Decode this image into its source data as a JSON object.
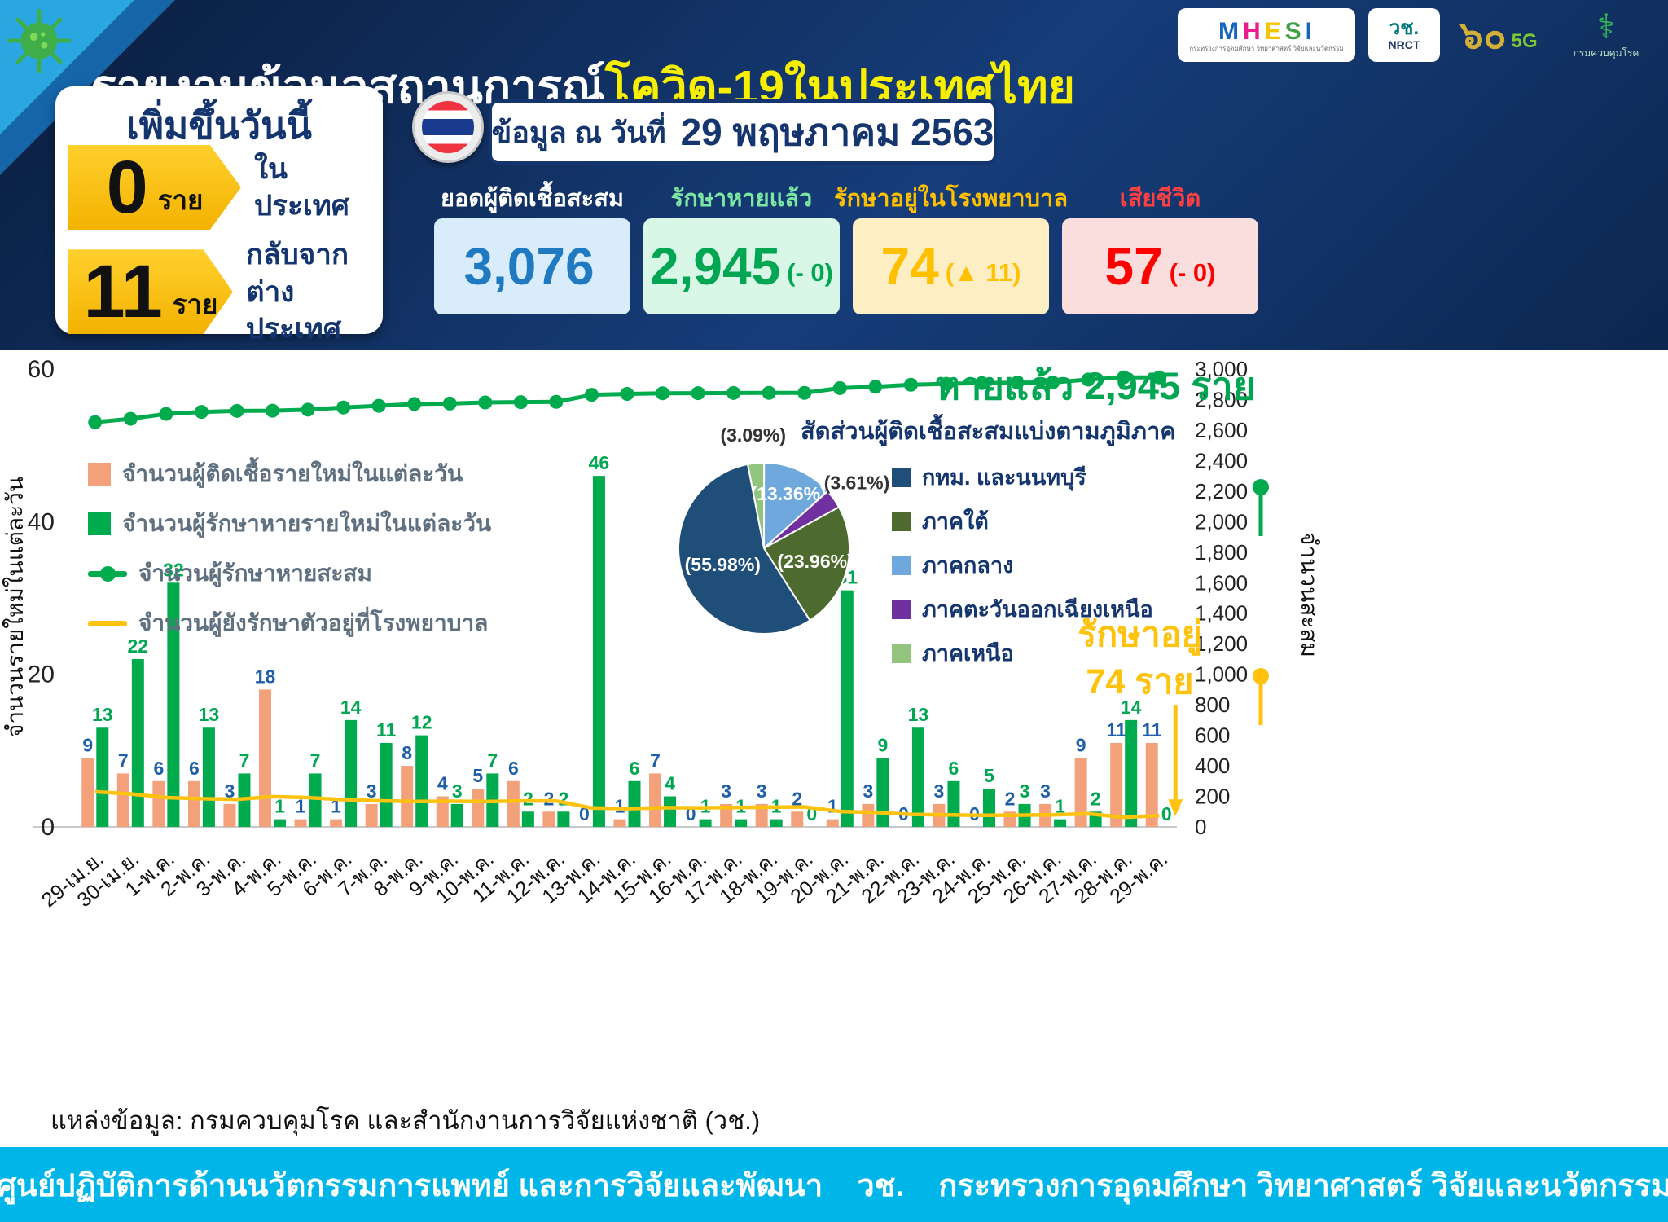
{
  "header": {
    "title_white": "รายงานข้อมูลสถานการณ์",
    "title_yellow": "โควิด-19ในประเทศไทย",
    "date_prefix": "ข้อมูล ณ วันที่",
    "date_value": "29 พฤษภาคม 2563",
    "logos": {
      "mhesi_letters": [
        "M",
        "H",
        "E",
        "S",
        "I"
      ],
      "mhesi_sub": "กระทรวงการอุดมศึกษา วิทยาศาสตร์ วิจัยและนวัตกรรม",
      "nrct_th": "วช.",
      "nrct_en": "NRCT",
      "sixty": "๖๐",
      "five_g": "5G",
      "ddc_symbol": "⚕",
      "ddc": "กรมควบคุมโรค"
    }
  },
  "today": {
    "title": "เพิ่มขึ้นวันนี้",
    "items": [
      {
        "value": "0",
        "unit": "ราย",
        "label1": "ในประเทศ",
        "label2": ""
      },
      {
        "value": "11",
        "unit": "ราย",
        "label1": "กลับจาก",
        "label2": "ต่างประเทศ"
      }
    ]
  },
  "stats": [
    {
      "label": "ยอดผู้ติดเชื้อสะสม",
      "value": "3,076",
      "delta": "",
      "label_color": "#ffffff",
      "value_color": "#1f7ac2",
      "bg": "#d9ecfb"
    },
    {
      "label": "รักษาหายแล้ว",
      "value": "2,945",
      "delta": "(- 0)",
      "label_color": "#7ce6a3",
      "value_color": "#00a651",
      "bg": "#d9f7e6"
    },
    {
      "label": "รักษาอยู่ในโรงพยาบาล",
      "value": "74",
      "delta": "(▲ 11)",
      "label_color": "#ffc000",
      "value_color": "#ffc000",
      "bg": "#fdeec3"
    },
    {
      "label": "เสียชีวิต",
      "value": "57",
      "delta": "(- 0)",
      "label_color": "#ff4040",
      "value_color": "#ff0000",
      "bg": "#fadddd"
    }
  ],
  "chart_data": [
    {
      "type": "bar",
      "title": "",
      "categories": [
        "29-เม.ย.",
        "30-เม.ย.",
        "1-พ.ค.",
        "2-พ.ค.",
        "3-พ.ค.",
        "4-พ.ค.",
        "5-พ.ค.",
        "6-พ.ค.",
        "7-พ.ค.",
        "8-พ.ค.",
        "9-พ.ค.",
        "10-พ.ค.",
        "11-พ.ค.",
        "12-พ.ค.",
        "13-พ.ค.",
        "14-พ.ค.",
        "15-พ.ค.",
        "16-พ.ค.",
        "17-พ.ค.",
        "18-พ.ค.",
        "19-พ.ค.",
        "20-พ.ค.",
        "21-พ.ค.",
        "22-พ.ค.",
        "23-พ.ค.",
        "24-พ.ค.",
        "25-พ.ค.",
        "26-พ.ค.",
        "27-พ.ค.",
        "28-พ.ค.",
        "29-พ.ค."
      ],
      "series": [
        {
          "name": "จำนวนผู้ติดเชื้อรายใหม่ในแต่ละวัน",
          "kind": "bar",
          "axis": "left",
          "color": "#f2a17a",
          "label_color": "#1f5fa8",
          "values": [
            9,
            7,
            6,
            6,
            3,
            18,
            1,
            1,
            3,
            8,
            4,
            5,
            6,
            2,
            0,
            1,
            7,
            0,
            3,
            3,
            2,
            1,
            3,
            0,
            3,
            0,
            2,
            3,
            9,
            11,
            11
          ]
        },
        {
          "name": "จำนวนผู้รักษาหายรายใหม่ในแต่ละวัน",
          "kind": "bar",
          "axis": "left",
          "color": "#00ab4e",
          "label_color": "#00a651",
          "values": [
            13,
            22,
            32,
            13,
            7,
            1,
            7,
            14,
            11,
            12,
            3,
            7,
            2,
            2,
            46,
            6,
            4,
            1,
            1,
            1,
            0,
            31,
            9,
            13,
            6,
            5,
            3,
            1,
            2,
            14,
            0
          ]
        },
        {
          "name": "จำนวนผู้รักษาหายสะสม",
          "kind": "line",
          "axis": "right",
          "color": "#00ab4e",
          "values": [
            2652,
            2674,
            2706,
            2719,
            2726,
            2727,
            2734,
            2748,
            2759,
            2771,
            2774,
            2781,
            2783,
            2785,
            2831,
            2837,
            2841,
            2842,
            2843,
            2844,
            2844,
            2875,
            2884,
            2897,
            2903,
            2908,
            2911,
            2912,
            2931,
            2945,
            2945
          ]
        },
        {
          "name": "จำนวนผู้ยังรักษาตัวอยู่ที่โรงพยาบาล",
          "kind": "line",
          "axis": "right",
          "color": "#ffc20e",
          "values": [
            230,
            216,
            192,
            185,
            181,
            198,
            192,
            179,
            171,
            167,
            168,
            166,
            170,
            170,
            124,
            119,
            126,
            125,
            127,
            129,
            131,
            101,
            95,
            82,
            79,
            76,
            77,
            79,
            86,
            63,
            74
          ]
        }
      ],
      "left_axis": {
        "label": "จำนวนรายใหม่ในแต่ละวัน",
        "max": 60,
        "ticks": [
          0,
          20,
          40,
          60
        ]
      },
      "right_axis": {
        "label": "จำนวนสะสม",
        "max": 3000,
        "tick_step": 200
      },
      "annotations": {
        "recovered": "หายแล้ว 2,945 ราย",
        "hospitalized_line1": "รักษาอยู่",
        "hospitalized_line2": "74 ราย"
      }
    },
    {
      "type": "pie",
      "title": "สัดส่วนผู้ติดเชื้อสะสมแบ่งตามภูมิภาค",
      "labels": [
        "กทม. และนนทบุรี",
        "ภาคใต้",
        "ภาคกลาง",
        "ภาคตะวันออกเฉียงเหนือ",
        "ภาคเหนือ"
      ],
      "values": [
        55.98,
        23.96,
        13.36,
        3.61,
        3.09
      ],
      "colors": [
        "#1f4e79",
        "#4e6b2f",
        "#6fa8dc",
        "#7030a0",
        "#93c47d"
      ],
      "draw_order": [
        4,
        2,
        3,
        1,
        0
      ],
      "start_angle": -101,
      "legend_position": "right"
    }
  ],
  "footer": {
    "source": "แหล่งข้อมูล: กรมควบคุมโรค และสำนักงานการวิจัยแห่งชาติ (วช.)",
    "banner": "ศูนย์ปฏิบัติการด้านนวัตกรรมการแพทย์ และการวิจัยและพัฒนา    วช.    กระทรวงการอุดมศึกษา วิทยาศาสตร์ วิจัยและนวัตกรรม"
  }
}
